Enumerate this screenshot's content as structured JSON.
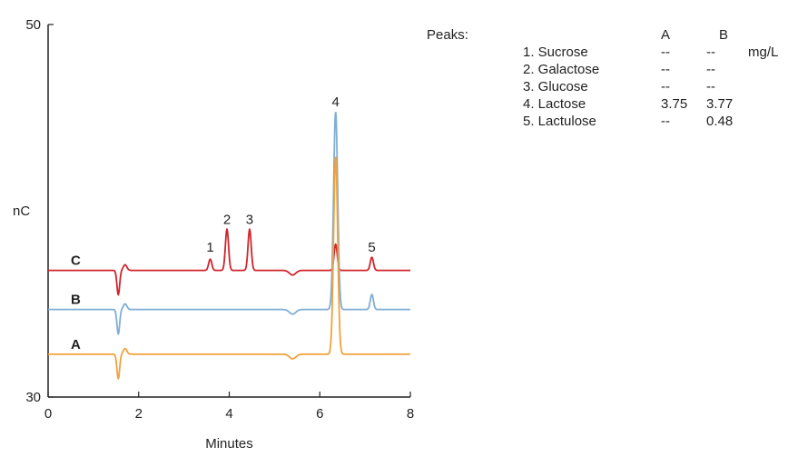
{
  "chart_data": {
    "type": "line",
    "xlabel": "Minutes",
    "ylabel": "nC",
    "xlim": [
      0,
      8
    ],
    "ylim": [
      30,
      50
    ],
    "x_ticks": [
      "0",
      "2",
      "4",
      "6",
      "8"
    ],
    "y_ticks": [
      "30",
      "50"
    ],
    "grid": false,
    "series": [
      {
        "name": "C",
        "color": "#d0242b",
        "baseline": 36.8,
        "peaks": [
          {
            "label": "1",
            "x": 3.58,
            "height": 0.6
          },
          {
            "label": "2",
            "x": 3.95,
            "height": 2.2
          },
          {
            "label": "3",
            "x": 4.45,
            "height": 2.2
          },
          {
            "label": "4",
            "x": 6.35,
            "height": 1.4
          },
          {
            "label": "5",
            "x": 7.15,
            "height": 0.7
          }
        ]
      },
      {
        "name": "B",
        "color": "#7eaed6",
        "baseline": 34.7,
        "peaks": [
          {
            "label": "4",
            "x": 6.35,
            "height": 10.6
          },
          {
            "label": "5",
            "x": 7.15,
            "height": 0.8
          }
        ]
      },
      {
        "name": "A",
        "color": "#f0a23a",
        "baseline": 32.3,
        "peaks": [
          {
            "label": "4",
            "x": 6.35,
            "height": 10.6
          }
        ]
      }
    ],
    "peak_labels": [
      {
        "text": "1",
        "x": 3.58,
        "y": 37.8
      },
      {
        "text": "2",
        "x": 3.95,
        "y": 39.3
      },
      {
        "text": "3",
        "x": 4.45,
        "y": 39.3
      },
      {
        "text": "4",
        "x": 6.35,
        "y": 45.6
      },
      {
        "text": "5",
        "x": 7.15,
        "y": 37.8
      }
    ],
    "peaks_table": {
      "title": "Peaks:",
      "columns": [
        "A",
        "B"
      ],
      "unit": "mg/L",
      "rows": [
        {
          "name": "1. Sucrose",
          "A": "--",
          "B": "--"
        },
        {
          "name": "2. Galactose",
          "A": "--",
          "B": "--"
        },
        {
          "name": "3. Glucose",
          "A": "--",
          "B": "--"
        },
        {
          "name": "4. Lactose",
          "A": "3.75",
          "B": "3.77"
        },
        {
          "name": "5. Lactulose",
          "A": "--",
          "B": "0.48"
        }
      ]
    }
  }
}
